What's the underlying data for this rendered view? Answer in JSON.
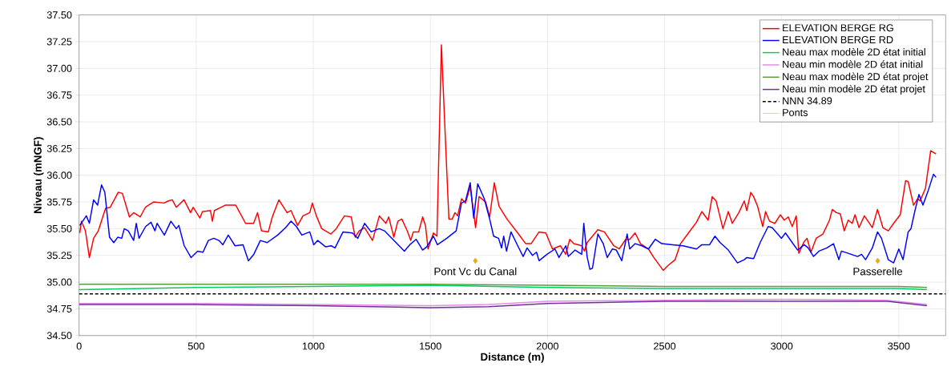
{
  "chart_data": {
    "type": "line",
    "xlabel": "Distance (m)",
    "ylabel": "Niveau (mNGF)",
    "xlim": [
      0,
      3700
    ],
    "xticks": [
      0,
      500,
      1000,
      1500,
      2000,
      2500,
      3000,
      3500
    ],
    "ylim": [
      34.5,
      37.5
    ],
    "yticks": [
      {
        "value": 34.5,
        "label": "34.50"
      },
      {
        "value": 34.75,
        "label": "34.75"
      },
      {
        "value": 35,
        "label": "35.00"
      },
      {
        "value": 35.25,
        "label": "35.25"
      },
      {
        "value": 35.5,
        "label": "35.50"
      },
      {
        "value": 35.75,
        "label": "35.75"
      },
      {
        "value": 36,
        "label": "36.00"
      },
      {
        "value": 36.25,
        "label": "36.25"
      },
      {
        "value": 36.5,
        "label": "36.50"
      },
      {
        "value": 36.75,
        "label": "36.75"
      },
      {
        "value": 37,
        "label": "37.00"
      },
      {
        "value": 37.25,
        "label": "37.25"
      },
      {
        "value": 37.5,
        "label": "37.50"
      }
    ],
    "grid": true,
    "legend": "top right",
    "series": [
      {
        "name": "ELEVATION BERGE RG",
        "color": "#ff0000",
        "x": [
          3,
          10,
          27,
          44,
          62,
          82,
          113,
          133,
          167,
          185,
          215,
          233,
          261,
          283,
          318,
          363,
          381,
          398,
          415,
          448,
          476,
          487,
          516,
          527,
          561,
          569,
          578,
          624,
          669,
          711,
          745,
          762,
          779,
          808,
          825,
          853,
          888,
          905,
          933,
          956,
          985,
          996,
          1013,
          1036,
          1075,
          1098,
          1133,
          1162,
          1179,
          1196,
          1219,
          1253,
          1282,
          1310,
          1322,
          1344,
          1361,
          1378,
          1401,
          1416,
          1427,
          1450,
          1467,
          1479,
          1490,
          1513,
          1528,
          1547,
          1564,
          1579,
          1593,
          1605,
          1616,
          1633,
          1650,
          1670,
          1693,
          1708,
          1736,
          1753,
          1773,
          1793,
          1827,
          1873,
          1907,
          1930,
          1964,
          1993,
          2021,
          2055,
          2078,
          2095,
          2112,
          2146,
          2158,
          2169,
          2215,
          2243,
          2283,
          2306,
          2334,
          2351,
          2374,
          2397,
          2431,
          2454,
          2494,
          2517,
          2545,
          2568,
          2602,
          2636,
          2659,
          2686,
          2703,
          2720,
          2749,
          2772,
          2789,
          2817,
          2840,
          2851,
          2868,
          2880,
          2897,
          2919,
          2931,
          2948,
          2971,
          2994,
          3011,
          3028,
          3045,
          3062,
          3073,
          3096,
          3108,
          3125,
          3147,
          3176,
          3204,
          3216,
          3233,
          3250,
          3267,
          3284,
          3301,
          3313,
          3330,
          3353,
          3387,
          3409,
          3432,
          3455,
          3478,
          3506,
          3529,
          3540,
          3563,
          3580,
          3591,
          3614,
          3636,
          3659
        ],
        "values": [
          35.46,
          35.57,
          35.48,
          35.23,
          35.41,
          35.48,
          35.69,
          35.7,
          35.84,
          35.83,
          35.61,
          35.65,
          35.61,
          35.7,
          35.75,
          35.74,
          35.76,
          35.77,
          35.7,
          35.77,
          35.65,
          35.7,
          35.6,
          35.66,
          35.67,
          35.57,
          35.67,
          35.72,
          35.72,
          35.55,
          35.55,
          35.65,
          35.48,
          35.47,
          35.61,
          35.77,
          35.65,
          35.67,
          35.53,
          35.62,
          35.65,
          35.74,
          35.62,
          35.5,
          35.45,
          35.5,
          35.62,
          35.61,
          35.42,
          35.48,
          35.51,
          35.39,
          35.62,
          35.55,
          35.61,
          35.42,
          35.57,
          35.59,
          35.48,
          35.39,
          35.47,
          35.47,
          35.61,
          35.53,
          35.31,
          35.46,
          35.43,
          37.22,
          36.34,
          35.59,
          35.59,
          35.65,
          35.62,
          35.78,
          35.74,
          35.89,
          35.51,
          35.8,
          35.75,
          35.61,
          35.93,
          35.71,
          35.59,
          35.46,
          35.36,
          35.36,
          35.47,
          35.46,
          35.31,
          35.34,
          35.26,
          35.4,
          35.36,
          35.34,
          35.29,
          35.37,
          35.49,
          35.47,
          35.34,
          35.31,
          35.4,
          35.4,
          35.46,
          35.36,
          35.31,
          35.23,
          35.11,
          35.16,
          35.21,
          35.36,
          35.46,
          35.56,
          35.66,
          35.58,
          35.8,
          35.76,
          35.5,
          35.66,
          35.55,
          35.65,
          35.76,
          35.67,
          35.84,
          35.8,
          35.71,
          35.52,
          35.66,
          35.57,
          35.55,
          35.63,
          35.58,
          35.61,
          35.52,
          35.62,
          35.27,
          35.38,
          35.41,
          35.28,
          35.41,
          35.45,
          35.58,
          35.68,
          35.65,
          35.64,
          35.48,
          35.58,
          35.55,
          35.63,
          35.51,
          35.62,
          35.51,
          35.68,
          35.51,
          35.48,
          35.55,
          35.63,
          35.95,
          35.94,
          35.72,
          35.78,
          35.76,
          35.88,
          36.23,
          36.2
        ]
      },
      {
        "name": "ELEVATION BERGE RD",
        "color": "#0000ff",
        "x": [
          3,
          31,
          44,
          62,
          79,
          96,
          110,
          130,
          148,
          165,
          182,
          193,
          210,
          233,
          244,
          256,
          284,
          307,
          324,
          333,
          364,
          392,
          415,
          426,
          449,
          478,
          506,
          529,
          552,
          575,
          597,
          614,
          637,
          666,
          700,
          723,
          746,
          774,
          803,
          848,
          882,
          905,
          928,
          951,
          985,
          1002,
          1019,
          1053,
          1076,
          1093,
          1127,
          1167,
          1190,
          1219,
          1247,
          1281,
          1304,
          1349,
          1389,
          1412,
          1439,
          1467,
          1484,
          1513,
          1530,
          1570,
          1610,
          1633,
          1650,
          1670,
          1685,
          1702,
          1730,
          1753,
          1770,
          1791,
          1804,
          1813,
          1825,
          1844,
          1873,
          1896,
          1913,
          1936,
          1953,
          1964,
          1998,
          2032,
          2049,
          2078,
          2089,
          2118,
          2146,
          2155,
          2169,
          2181,
          2192,
          2215,
          2238,
          2255,
          2277,
          2294,
          2317,
          2340,
          2351,
          2374,
          2403,
          2431,
          2460,
          2488,
          2534,
          2579,
          2636,
          2659,
          2692,
          2715,
          2737,
          2772,
          2811,
          2840,
          2851,
          2880,
          2908,
          2942,
          2959,
          2999,
          3016,
          3045,
          3068,
          3096,
          3113,
          3136,
          3159,
          3193,
          3221,
          3244,
          3255,
          3284,
          3324,
          3341,
          3358,
          3387,
          3409,
          3426,
          3455,
          3478,
          3500,
          3518,
          3540,
          3552,
          3569,
          3586,
          3603,
          3626,
          3648,
          3659
        ],
        "values": [
          35.53,
          35.62,
          35.55,
          35.77,
          35.72,
          35.91,
          35.84,
          35.42,
          35.37,
          35.42,
          35.41,
          35.5,
          35.48,
          35.39,
          35.55,
          35.41,
          35.52,
          35.56,
          35.48,
          35.55,
          35.44,
          35.57,
          35.5,
          35.53,
          35.34,
          35.23,
          35.29,
          35.28,
          35.39,
          35.41,
          35.39,
          35.35,
          35.44,
          35.34,
          35.35,
          35.2,
          35.26,
          35.39,
          35.37,
          35.44,
          35.51,
          35.57,
          35.52,
          35.44,
          35.47,
          35.35,
          35.39,
          35.33,
          35.34,
          35.32,
          35.47,
          35.46,
          35.41,
          35.55,
          35.47,
          35.5,
          35.48,
          35.38,
          35.29,
          35.35,
          35.4,
          35.3,
          35.33,
          35.43,
          35.35,
          35.41,
          35.48,
          35.74,
          35.76,
          35.93,
          35.6,
          35.92,
          35.78,
          35.59,
          35.43,
          35.41,
          35.32,
          35.43,
          35.29,
          35.47,
          35.34,
          35.24,
          35.32,
          35.25,
          35.28,
          35.2,
          35.26,
          35.31,
          35.23,
          35.34,
          35.24,
          35.3,
          35.26,
          35.55,
          35.24,
          35.12,
          35.13,
          35.45,
          35.36,
          35.23,
          35.31,
          35.3,
          35.2,
          35.45,
          35.31,
          35.36,
          35.34,
          35.31,
          35.4,
          35.36,
          35.35,
          35.34,
          35.31,
          35.35,
          35.35,
          35.43,
          35.37,
          35.3,
          35.18,
          35.21,
          35.23,
          35.22,
          35.37,
          35.52,
          35.51,
          35.41,
          35.46,
          35.37,
          35.3,
          35.35,
          35.32,
          35.24,
          35.29,
          35.32,
          35.36,
          35.21,
          35.29,
          35.27,
          35.24,
          35.26,
          35.21,
          35.32,
          35.47,
          35.41,
          35.21,
          35.18,
          35.31,
          35.21,
          35.47,
          35.5,
          35.67,
          35.82,
          35.72,
          35.86,
          36.01,
          35.98
        ]
      },
      {
        "name": "Neau max modèle 2D état initial",
        "color": "#00cc66",
        "x": [
          0,
          500,
          1000,
          1500,
          2000,
          2500,
          3000,
          3500,
          3620
        ],
        "values": [
          34.93,
          34.95,
          34.96,
          34.97,
          34.95,
          34.94,
          34.94,
          34.94,
          34.93
        ]
      },
      {
        "name": "Neau min modèle 2D état initial",
        "color": "#e68ce6",
        "x": [
          0,
          500,
          1000,
          1500,
          1750,
          2000,
          2500,
          3000,
          3450,
          3620
        ],
        "values": [
          34.8,
          34.8,
          34.79,
          34.78,
          34.79,
          34.82,
          34.83,
          34.84,
          34.83,
          34.79
        ]
      },
      {
        "name": "Neau max modèle 2D état projet",
        "color": "#5b9b3b",
        "x": [
          0,
          500,
          1000,
          1500,
          2000,
          2500,
          3000,
          3500,
          3620
        ],
        "values": [
          34.98,
          34.98,
          34.98,
          34.98,
          34.97,
          34.96,
          34.96,
          34.96,
          34.95
        ]
      },
      {
        "name": "Neau min modèle 2D état projet",
        "color": "#7030a0",
        "x": [
          0,
          500,
          1000,
          1500,
          1750,
          2000,
          2500,
          3000,
          3450,
          3620
        ],
        "values": [
          34.79,
          34.79,
          34.78,
          34.76,
          34.77,
          34.8,
          34.82,
          34.82,
          34.82,
          34.78
        ]
      },
      {
        "name": "NNN 34.89",
        "color": "#000000",
        "line_style": "dashed",
        "x": [
          0,
          3700
        ],
        "values": [
          34.89,
          34.89
        ]
      },
      {
        "name": "Ponts",
        "type": "scatter",
        "marker": "diamond",
        "color": "#f0b000",
        "x": [
          1692,
          3410
        ],
        "values": [
          35.2,
          35.2
        ]
      }
    ],
    "annotations": [
      {
        "text": "Pont Vc du Canal",
        "x": 1692,
        "y": 35.2
      },
      {
        "text": "Passerelle",
        "x": 3410,
        "y": 35.2
      }
    ]
  }
}
